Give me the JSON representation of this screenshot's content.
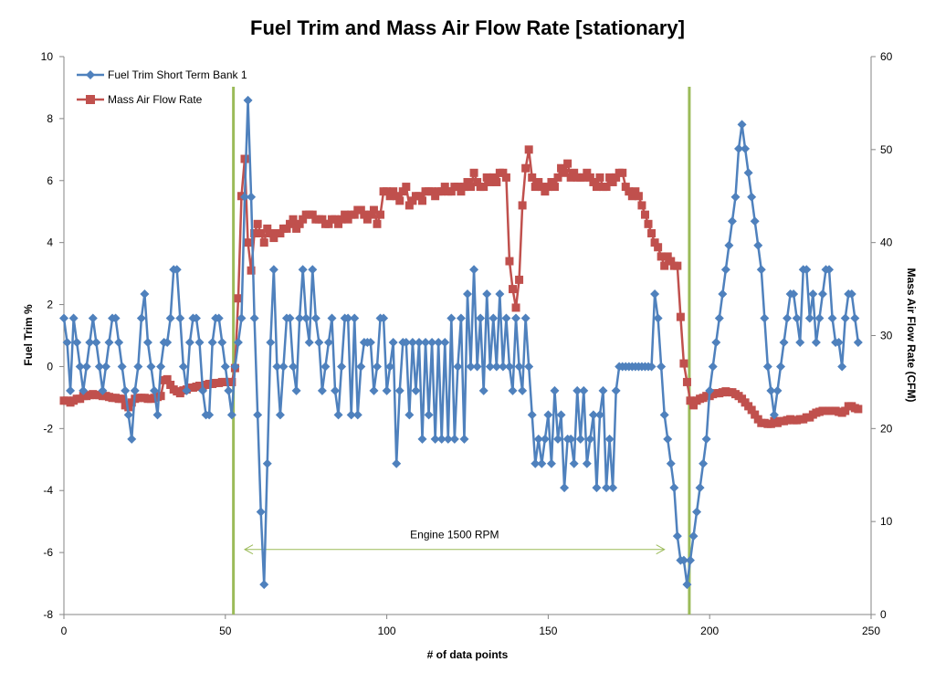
{
  "chart_data": {
    "type": "line",
    "title": "Fuel Trim and Mass Air Flow Rate [stationary]",
    "xlabel": "# of data points",
    "ylabel": "Fuel Trim %",
    "y2label": "Mass Air Flow Rate (CFM)",
    "xlim": [
      0,
      250
    ],
    "ylim": [
      -8,
      10
    ],
    "y2lim": [
      0,
      60
    ],
    "xticks": [
      0,
      50,
      100,
      150,
      200,
      250
    ],
    "yticks": [
      -8,
      -6,
      -4,
      -2,
      0,
      2,
      4,
      6,
      8,
      10
    ],
    "y2ticks": [
      0,
      10,
      20,
      30,
      40,
      50,
      60
    ],
    "grid": false,
    "legend": "top-left",
    "series": [
      {
        "name": "Fuel Trim Short Term Bank 1",
        "axis": "left",
        "color": "#4f81bd",
        "marker": "diamond",
        "values": [
          1.56,
          0.78,
          -0.78,
          1.56,
          0.78,
          0,
          -0.78,
          0,
          0.78,
          1.56,
          0.78,
          0,
          -0.78,
          0,
          0.78,
          1.56,
          1.56,
          0.78,
          0,
          -0.78,
          -1.56,
          -2.34,
          -0.78,
          0,
          1.56,
          2.34,
          0.78,
          0,
          -0.78,
          -1.56,
          0,
          0.78,
          0.78,
          1.56,
          3.13,
          3.13,
          1.56,
          0,
          -0.78,
          0.78,
          1.56,
          1.56,
          0.78,
          -0.78,
          -1.56,
          -1.56,
          0.78,
          1.56,
          1.56,
          0.78,
          0,
          -0.78,
          -1.56,
          0,
          0.78,
          1.56,
          5.47,
          8.59,
          5.47,
          1.56,
          -1.56,
          -4.69,
          -7.03,
          -3.13,
          0.78,
          3.13,
          0,
          -1.56,
          0,
          1.56,
          1.56,
          0,
          -0.78,
          1.56,
          3.13,
          1.56,
          0.78,
          3.13,
          1.56,
          0.78,
          -0.78,
          0,
          0.78,
          1.56,
          -0.78,
          -1.56,
          0,
          1.56,
          1.56,
          -1.56,
          1.56,
          -1.56,
          0,
          0.78,
          0.78,
          0.78,
          -0.78,
          0,
          1.56,
          1.56,
          -0.78,
          0,
          0.78,
          -3.13,
          -0.78,
          0.78,
          0.78,
          -1.56,
          0.78,
          -0.78,
          0.78,
          -2.34,
          0.78,
          -1.56,
          0.78,
          -2.34,
          0.78,
          -2.34,
          0.78,
          -2.34,
          1.56,
          -2.34,
          0,
          1.56,
          -2.34,
          2.34,
          0,
          3.13,
          0,
          1.56,
          -0.78,
          2.34,
          0,
          1.56,
          0,
          2.34,
          0,
          1.56,
          0,
          -0.78,
          1.56,
          0,
          -0.78,
          1.56,
          0,
          -1.56,
          -3.13,
          -2.34,
          -3.13,
          -2.34,
          -1.56,
          -3.13,
          -0.78,
          -2.34,
          -1.56,
          -3.91,
          -2.34,
          -2.34,
          -3.13,
          -0.78,
          -2.34,
          -0.78,
          -3.13,
          -2.34,
          -1.56,
          -3.91,
          -1.56,
          -0.78,
          -3.91,
          -2.34,
          -3.91,
          -0.78,
          0,
          0,
          0,
          0,
          0,
          0,
          0,
          0,
          0,
          0,
          0,
          2.34,
          1.56,
          0,
          -1.56,
          -2.34,
          -3.13,
          -3.91,
          -5.47,
          -6.25,
          -6.25,
          -7.03,
          -6.25,
          -5.47,
          -4.69,
          -3.91,
          -3.13,
          -2.34,
          -0.78,
          0,
          0.78,
          1.56,
          2.34,
          3.13,
          3.91,
          4.69,
          5.47,
          7.03,
          7.81,
          7.03,
          6.25,
          5.47,
          4.69,
          3.91,
          3.13,
          1.56,
          0,
          -0.78,
          -1.56,
          -0.78,
          0,
          0.78,
          1.56,
          2.34,
          2.34,
          1.56,
          0.78,
          3.13,
          3.13,
          1.56,
          2.34,
          0.78,
          1.56,
          2.34,
          3.13,
          3.13,
          1.56,
          0.78,
          0.78,
          0,
          1.56,
          2.34,
          2.34,
          1.56,
          0.78
        ]
      },
      {
        "name": "Mass Air Flow Rate",
        "axis": "right",
        "color": "#c0504d",
        "marker": "square",
        "values": [
          23,
          23,
          22.8,
          23,
          23.2,
          23.2,
          23.5,
          23.5,
          23.6,
          23.7,
          23.6,
          23.6,
          23.5,
          23.5,
          23.4,
          23.3,
          23.3,
          23.2,
          23.2,
          22.5,
          22.3,
          22.8,
          23.2,
          23.3,
          23.3,
          23.3,
          23.2,
          23.2,
          23.3,
          23.4,
          23.5,
          25.2,
          25.3,
          24.7,
          24.2,
          24,
          23.8,
          24.1,
          24.2,
          24.4,
          24.4,
          24.5,
          24.6,
          24.6,
          24.7,
          24.8,
          24.8,
          24.9,
          24.9,
          25,
          25,
          25,
          25,
          26.5,
          34,
          45,
          49,
          40,
          37,
          41,
          42,
          41,
          40,
          41.5,
          41,
          40.5,
          41,
          41,
          41.5,
          41.5,
          42,
          42.5,
          41.5,
          42,
          42.5,
          43,
          43,
          43,
          42.5,
          42.5,
          42.5,
          42,
          42,
          42.5,
          42.5,
          42,
          42.5,
          43,
          42.5,
          43,
          43,
          43.5,
          43.5,
          43,
          42.5,
          43,
          43.5,
          42,
          43,
          45.5,
          45.5,
          45,
          45.5,
          45,
          44.5,
          45.5,
          46,
          44,
          44.5,
          45,
          45,
          44.5,
          45.5,
          45.5,
          45.5,
          45,
          45.5,
          45.5,
          46,
          45.5,
          45.5,
          46,
          46,
          45.5,
          46,
          46.5,
          46,
          47.5,
          46.5,
          46,
          46,
          47,
          46.5,
          47,
          46.5,
          47.5,
          47.5,
          47,
          38,
          35,
          33,
          36,
          44,
          48,
          50,
          47,
          46,
          46.5,
          46,
          45.5,
          46,
          46.5,
          46,
          47,
          48,
          47.5,
          48.5,
          47,
          47.5,
          47,
          47,
          47,
          47.5,
          47,
          46.5,
          46,
          47,
          46,
          46,
          47,
          46.5,
          47,
          47.5,
          47.5,
          46,
          45.5,
          45,
          45.5,
          45,
          44,
          43,
          42,
          41,
          40,
          39.5,
          38.5,
          37.5,
          38.5,
          38,
          37.5,
          37.5,
          32,
          27,
          25,
          23,
          22.5,
          23,
          23.2,
          23.3,
          23.5,
          23.5,
          23.7,
          23.8,
          23.8,
          23.9,
          24,
          23.9,
          23.9,
          23.7,
          23.5,
          23.2,
          22.8,
          22.4,
          22,
          21.5,
          21,
          20.6,
          20.6,
          20.5,
          20.5,
          20.8,
          20.6,
          20.8,
          20.8,
          20.9,
          21,
          20.9,
          20.9,
          21,
          21,
          21.2,
          21.2,
          21.5,
          21.7,
          21.8,
          21.9,
          21.9,
          21.9,
          21.9,
          21.9,
          21.8,
          21.7,
          21.9,
          22.4,
          22.4,
          22.2,
          22.1
        ]
      }
    ],
    "vertical_markers": [
      52.5,
      193.7
    ],
    "marker_color": "#9bbb59",
    "annotations": [
      {
        "text": "Engine  1500 RPM",
        "x_from": 56,
        "x_to": 186,
        "y": -5.9
      }
    ]
  }
}
